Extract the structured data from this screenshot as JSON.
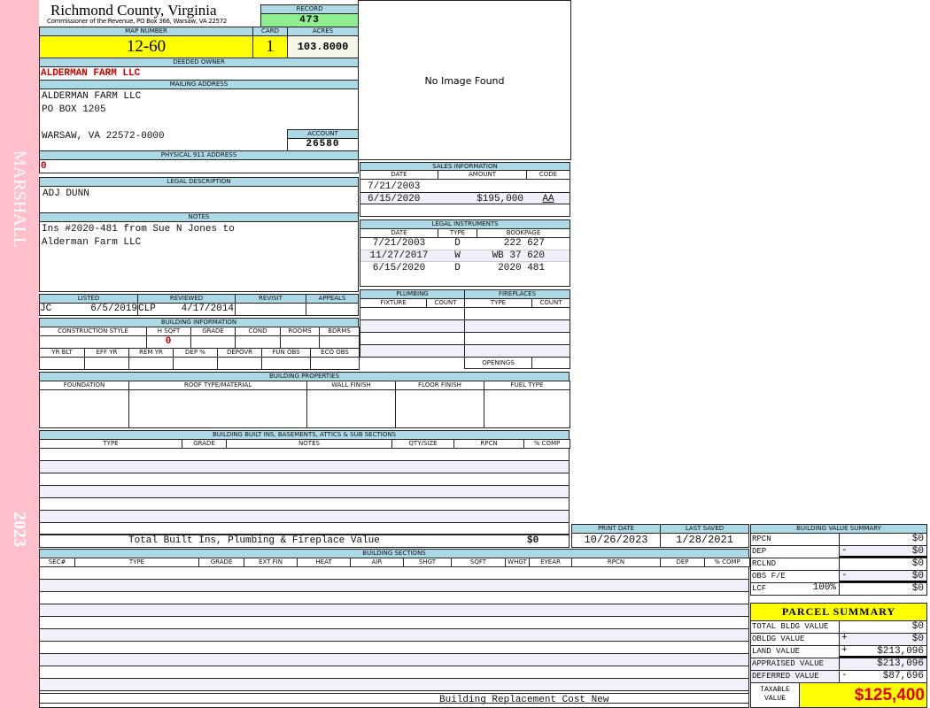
{
  "sidebar": {
    "district": "MARSHALL",
    "year": "2023",
    "color": "#ffc0cb"
  },
  "header": {
    "county": "Richmond County, Virginia",
    "office": "Commissioner of the Revenue, PO Box 366, Warsaw, VA 22572"
  },
  "record": {
    "label": "RECORD",
    "value": "473"
  },
  "map": {
    "label": "MAP NUMBER",
    "value": "12-60"
  },
  "card": {
    "label": "CARD",
    "value": "1"
  },
  "acres": {
    "label": "ACRES",
    "value": "103.8000"
  },
  "owner": {
    "label": "DEEDED OWNER",
    "value": "ALDERMAN FARM LLC"
  },
  "mailing": {
    "label": "MAILING ADDRESS",
    "line1": "ALDERMAN FARM LLC",
    "line2": "PO BOX 1205",
    "line3": "WARSAW, VA 22572-0000"
  },
  "account": {
    "label": "ACCOUNT",
    "value": "26580"
  },
  "physical": {
    "label": "PHYSICAL 911 ADDRESS",
    "value": "0"
  },
  "image": {
    "text": "No Image Found"
  },
  "legal": {
    "label": "LEGAL DESCRIPTION",
    "value": "ADJ DUNN"
  },
  "notes": {
    "label": "NOTES",
    "line1": "Ins #2020-481 from Sue N Jones to",
    "line2": "Alderman Farm LLC"
  },
  "listing": {
    "headers": [
      "LISTED",
      "REVIEWED",
      "REVISIT",
      "APPEALS"
    ],
    "listed_by": "JC",
    "listed_date": "6/5/2019",
    "reviewed_by": "CLP",
    "reviewed_date": "4/17/2014"
  },
  "building_info": {
    "label": "BUILDING INFORMATION",
    "headers1": [
      "CONSTRUCTION STYLE",
      "H SQFT",
      "GRADE",
      "COND",
      "ROOMS",
      "BDRMS"
    ],
    "hsqft": "0",
    "headers2": [
      "YR BLT",
      "EFF YR",
      "REM YR",
      "DEP %",
      "DEPOVR",
      "FUN OBS",
      "ECO OBS"
    ]
  },
  "sales": {
    "label": "SALES INFORMATION",
    "headers": [
      "DATE",
      "AMOUNT",
      "CODE"
    ],
    "rows": [
      {
        "date": "7/21/2003",
        "amount": "",
        "code": ""
      },
      {
        "date": "6/15/2020",
        "amount": "$195,000",
        "code": "AA"
      }
    ]
  },
  "instruments": {
    "label": "LEGAL INSTRUMENTS",
    "headers": [
      "DATE",
      "TYPE",
      "BOOKPAGE"
    ],
    "rows": [
      {
        "date": "7/21/2003",
        "type": "D",
        "book": "222 627"
      },
      {
        "date": "11/27/2017",
        "type": "W",
        "book": "WB 37 620"
      },
      {
        "date": "6/15/2020",
        "type": "D",
        "book": "2020 481"
      }
    ]
  },
  "plumbing": {
    "label": "PLUMBING",
    "headers": [
      "FIXTURE",
      "COUNT"
    ]
  },
  "fireplaces": {
    "label": "FIREPLACES",
    "headers": [
      "TYPE",
      "COUNT"
    ],
    "openings": "OPENINGS"
  },
  "properties": {
    "label": "BUILDING PROPERTIES",
    "headers": [
      "FOUNDATION",
      "ROOF TYPE/MATERIAL",
      "WALL FINISH",
      "FLOOR FINISH",
      "FUEL TYPE"
    ]
  },
  "builtins": {
    "label": "BUILDING BUILT INS, BASEMENTS, ATTICS & SUB SECTIONS",
    "headers": [
      "TYPE",
      "GRADE",
      "NOTES",
      "QTY/SIZE",
      "RPCN",
      "% COMP"
    ],
    "total_label": "Total Built Ins, Plumbing & Fireplace Value",
    "total_value": "$0"
  },
  "dates": {
    "print_label": "PRINT DATE",
    "print_date": "10/26/2023",
    "saved_label": "LAST SAVED",
    "saved_date": "1/28/2021"
  },
  "sections": {
    "label": "BUILDING SECTIONS",
    "headers": [
      "SEC#",
      "TYPE",
      "GRADE",
      "EXT FIN",
      "HEAT",
      "AIR",
      "SHGT",
      "SQFT",
      "WHGT",
      "EYEAR",
      "RPCN",
      "DEP",
      "% COMP"
    ],
    "footer": "Building Replacement Cost New"
  },
  "value_summary": {
    "label": "BUILDING VALUE SUMMARY",
    "rows": [
      {
        "label": "RPCN",
        "sign": "",
        "value": "$0"
      },
      {
        "label": "DEP",
        "sign": "-",
        "value": "$0"
      },
      {
        "label": "RCLND",
        "sign": "",
        "value": "$0"
      },
      {
        "label": "OBS F/E",
        "sign": "-",
        "value": "$0"
      },
      {
        "label": "LCF",
        "pct": "100%",
        "sign": "",
        "value": "$0"
      }
    ]
  },
  "parcel": {
    "label": "PARCEL SUMMARY",
    "rows": [
      {
        "label": "TOTAL BLDG VALUE",
        "sign": "",
        "value": "$0"
      },
      {
        "label": "OBLDG VALUE",
        "sign": "+",
        "value": "$0"
      },
      {
        "label": "LAND VALUE",
        "sign": "+",
        "value": "$213,096"
      },
      {
        "label": "APPRAISED VALUE",
        "sign": "",
        "value": "$213,096"
      },
      {
        "label": "DEFERRED VALUE",
        "sign": "-",
        "value": "$87,696"
      }
    ],
    "taxable_label1": "TAXABLE",
    "taxable_label2": "VALUE",
    "taxable_value": "$125,400"
  }
}
